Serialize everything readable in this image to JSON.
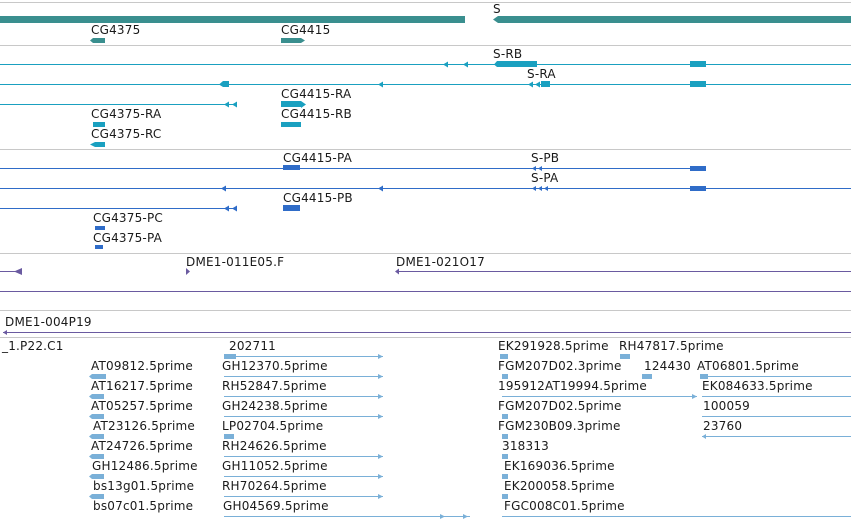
{
  "tracks": [
    {
      "id": "gene",
      "color": "#3a8f8f",
      "labels": [
        {
          "text": "CG4375"
        },
        {
          "text": "CG4415"
        },
        {
          "text": "S"
        }
      ]
    },
    {
      "id": "transcripts",
      "color": "#1aa0c0",
      "labels": [
        {
          "text": "S-RB"
        },
        {
          "text": "S-RA"
        },
        {
          "text": "CG4415-RA"
        },
        {
          "text": "CG4415-RB"
        },
        {
          "text": "CG4375-RA"
        },
        {
          "text": "CG4375-RC"
        }
      ]
    },
    {
      "id": "proteins",
      "color": "#2f6cc8",
      "labels": [
        {
          "text": "CG4415-PA"
        },
        {
          "text": "S-PB"
        },
        {
          "text": "S-PA"
        },
        {
          "text": "CG4415-PB"
        },
        {
          "text": "CG4375-PC"
        },
        {
          "text": "CG4375-PA"
        }
      ]
    },
    {
      "id": "clones-a",
      "color": "#6a5aa0",
      "labels": [
        {
          "text": "DME1-011E05.F"
        },
        {
          "text": "DME1-021O17"
        }
      ]
    },
    {
      "id": "clones-b",
      "color": "#6a5aa0",
      "labels": [
        {
          "text": "DME1-004P19"
        }
      ]
    },
    {
      "id": "ests",
      "color": "#7ab0d8",
      "labels": [
        {
          "text": "_1.P22.C1"
        },
        {
          "text": "202711"
        },
        {
          "text": "EK291928.5prime"
        },
        {
          "text": "RH47817.5prime"
        },
        {
          "text": "AT09812.5prime"
        },
        {
          "text": "GH12370.5prime"
        },
        {
          "text": "FGM207D02.3prime"
        },
        {
          "text": "124430"
        },
        {
          "text": "AT06801.5prime"
        },
        {
          "text": "AT16217.5prime"
        },
        {
          "text": "RH52847.5prime"
        },
        {
          "text": "195912AT19994.5prime"
        },
        {
          "text": "EK084633.5prime"
        },
        {
          "text": "AT05257.5prime"
        },
        {
          "text": "GH24238.5prime"
        },
        {
          "text": "FGM207D02.5prime"
        },
        {
          "text": "100059"
        },
        {
          "text": "AT23126.5prime"
        },
        {
          "text": "LP02704.5prime"
        },
        {
          "text": "FGM230B09.3prime"
        },
        {
          "text": "23760"
        },
        {
          "text": "AT24726.5prime"
        },
        {
          "text": "RH24626.5prime"
        },
        {
          "text": "318313"
        },
        {
          "text": "GH12486.5prime"
        },
        {
          "text": "GH11052.5prime"
        },
        {
          "text": "EK169036.5prime"
        },
        {
          "text": "bs13g01.5prime"
        },
        {
          "text": "RH70264.5prime"
        },
        {
          "text": "EK200058.5prime"
        },
        {
          "text": "bs07c01.5prime"
        },
        {
          "text": "GH04569.5prime"
        },
        {
          "text": "FGC008C01.5prime"
        }
      ]
    }
  ]
}
